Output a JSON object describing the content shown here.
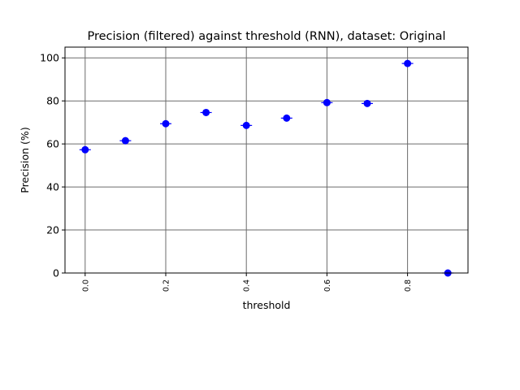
{
  "chart_data": {
    "type": "scatter",
    "title": "Precision (filtered) against threshold (RNN), dataset: Original",
    "xlabel": "threshold",
    "ylabel": "Precision (%)",
    "xlim": [
      -0.05,
      0.95
    ],
    "ylim": [
      0,
      105
    ],
    "grid": true,
    "marker_color": "#0000ff",
    "grid_color": "#6b6b6b",
    "x_ticks": [
      "0.0",
      "0.2",
      "0.4",
      "0.6",
      "0.8"
    ],
    "y_ticks": [
      "0",
      "20",
      "40",
      "60",
      "80",
      "100"
    ],
    "points": [
      {
        "x": 0.0,
        "y": 57.3
      },
      {
        "x": 0.1,
        "y": 61.5
      },
      {
        "x": 0.2,
        "y": 69.4
      },
      {
        "x": 0.3,
        "y": 74.6
      },
      {
        "x": 0.4,
        "y": 68.6
      },
      {
        "x": 0.5,
        "y": 72.0
      },
      {
        "x": 0.6,
        "y": 79.2
      },
      {
        "x": 0.7,
        "y": 78.8
      },
      {
        "x": 0.8,
        "y": 97.4
      },
      {
        "x": 0.9,
        "y": 0.0
      }
    ]
  }
}
